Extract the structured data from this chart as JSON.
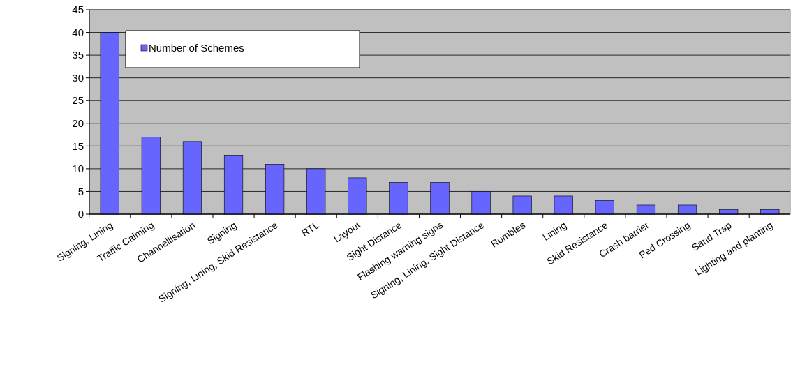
{
  "chart_data": {
    "type": "bar",
    "categories": [
      "Signing, Lining",
      "Traffic Calming",
      "Channellisation",
      "Signing",
      "Signing, Lining, Skid Resistance",
      "RTL",
      "Layout",
      "Sight Distance",
      "Flashing warning signs",
      "Signing, Lining, Sight Distance",
      "Rumbles",
      "Lining",
      "Skid Resistance",
      "Crash barrier",
      "Ped Crossing",
      "Sand Trap",
      "Lighting and planting"
    ],
    "series": [
      {
        "name": "Number of Schemes",
        "color": "#6666ff",
        "values": [
          40,
          17,
          16,
          13,
          11,
          10,
          8,
          7,
          7,
          5,
          4,
          4,
          3,
          2,
          2,
          1,
          1
        ]
      }
    ],
    "ylim": [
      0,
      45
    ],
    "yticks": [
      0,
      5,
      10,
      15,
      20,
      25,
      30,
      35,
      40,
      45
    ],
    "grid": "y",
    "legend": "top left"
  }
}
